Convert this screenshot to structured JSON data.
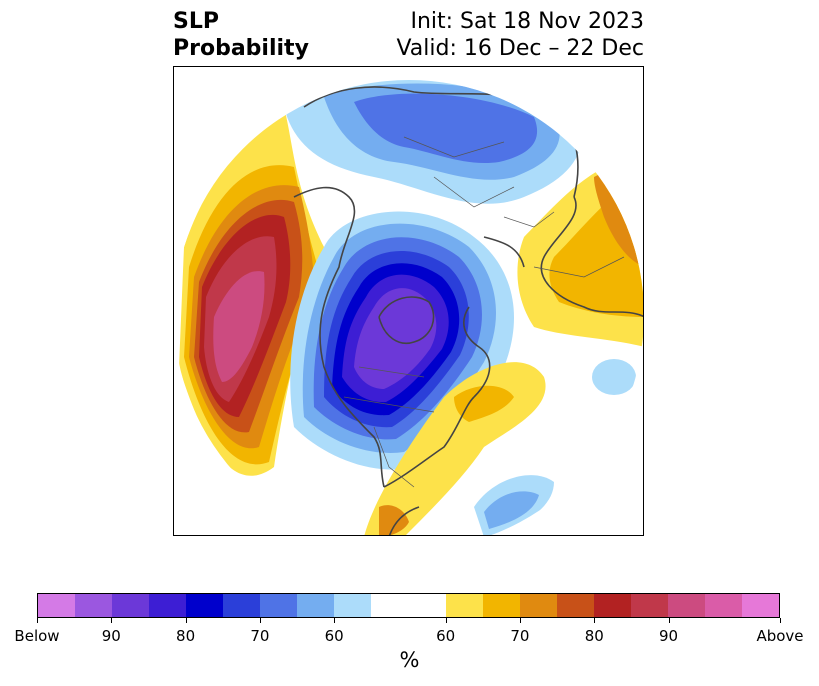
{
  "title": {
    "left_line1": "SLP",
    "left_line2": "Probability",
    "right_line1": "Init: Sat 18 Nov 2023",
    "right_line2": "Valid: 16 Dec – 22 Dec"
  },
  "colorbar": {
    "unit_label": "%",
    "colors": [
      "#d47ae6",
      "#9b57e0",
      "#6c38d8",
      "#3d1ed4",
      "#0000cc",
      "#2b3fd9",
      "#4f73e6",
      "#74adf0",
      "#acdcfa",
      "#ffffff",
      "#ffffff",
      "#fde24a",
      "#f2b500",
      "#e08a10",
      "#c85118",
      "#b22222",
      "#c0384a",
      "#cc4b80",
      "#da5ca8",
      "#e678d8"
    ],
    "ticks": [
      "Below",
      "90",
      "80",
      "70",
      "60",
      "60",
      "70",
      "80",
      "90",
      "Above"
    ]
  },
  "map": {
    "projection": "north polar stereographic",
    "regions": [
      {
        "name": "north-pacific-above",
        "category": "Above",
        "shade": "90"
      },
      {
        "name": "north-america-below",
        "category": "Below",
        "shade": "90"
      },
      {
        "name": "siberia-below",
        "category": "Below",
        "shade": "70"
      },
      {
        "name": "east-asia-above",
        "category": "Above",
        "shade": "60"
      },
      {
        "name": "western-atlantic-above",
        "category": "Above",
        "shade": "60"
      },
      {
        "name": "central-atlantic-below",
        "category": "Below",
        "shade": "60"
      }
    ]
  }
}
